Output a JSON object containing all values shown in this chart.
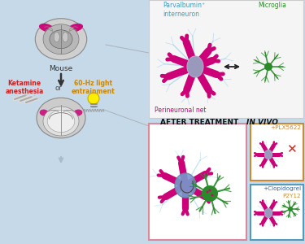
{
  "bg_color": "#c5d9e8",
  "bg_color_top": "#d5e6f0",
  "white_panel_bg": "#f8f8f8",
  "parvalbumin_label": "Parvalbumin⁺\ninterneuron",
  "microglia_label": "Microglia",
  "perineuronal_label": "Perineuronal net",
  "mouse_label": "Mouse",
  "ketamine_label": "Ketamine\nanesthesia",
  "or_label": "or",
  "light_label": "60-Hz light\nentrainment",
  "after_treatment_label": "AFTER TREATMENT ",
  "in_vivo_label": "IN VIVO",
  "plx_label": "+PLX5622",
  "clopi_label": "+Clopidogrel",
  "p2y12_label": "P2Y12",
  "neuron_color": "#cc0077",
  "microglia_color": "#2a8a2a",
  "net_color": "#99ccee",
  "soma_color": "#9999bb",
  "soma_color_blue": "#7799cc",
  "soma_color_green": "#55aa55",
  "border_pink": "#dd8899",
  "border_orange": "#cc8833",
  "border_blue": "#5599bb",
  "red_x_color": "#cc2222",
  "label_parvalbumin_color": "#4499bb",
  "label_microglia_color": "#2a8a2a",
  "label_perineuronal_color": "#cc0077",
  "label_ketamine_color": "#cc2222",
  "label_light_color": "#cc8800",
  "label_plx_color": "#cc8833",
  "label_clopi_color": "#3366aa",
  "label_p2y12_color": "#cc8833",
  "brain_outer": "#c0c0c0",
  "brain_inner": "#b0b0b0",
  "brain_detail": "#999999",
  "line_color": "#888888"
}
